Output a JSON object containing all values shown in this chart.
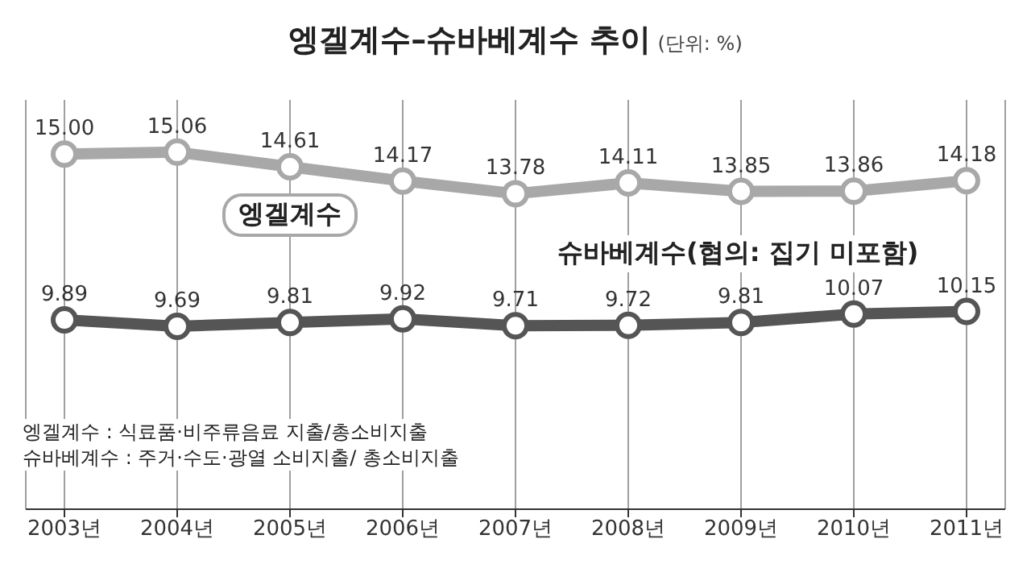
{
  "chart_data": {
    "type": "line",
    "title": "엥겔계수–슈바베계수 추이",
    "subtitle": "(단위: %)",
    "categories": [
      "2003년",
      "2004년",
      "2005년",
      "2006년",
      "2007년",
      "2008년",
      "2009년",
      "2010년",
      "2011년"
    ],
    "series": [
      {
        "name": "엥겔계수",
        "color": "#a8a8a8",
        "values": [
          15.0,
          15.06,
          14.61,
          14.17,
          13.78,
          14.11,
          13.85,
          13.86,
          14.18
        ],
        "value_labels": [
          "15.00",
          "15.06",
          "14.61",
          "14.17",
          "13.78",
          "14.11",
          "13.85",
          "13.86",
          "14.18"
        ]
      },
      {
        "name": "슈바베계수(협의: 집기 미포함)",
        "color": "#555555",
        "values": [
          9.89,
          9.69,
          9.81,
          9.92,
          9.71,
          9.72,
          9.81,
          10.07,
          10.15
        ],
        "value_labels": [
          "9.89",
          "9.69",
          "9.81",
          "9.92",
          "9.71",
          "9.72",
          "9.81",
          "10.07",
          "10.15"
        ]
      }
    ],
    "annotations": [
      "엥겔계수 : 식료품·비주류음료 지출/총소비지출",
      "슈바베계수 : 주거·수도·광열 소비지출/ 총소비지출"
    ],
    "grid": "x",
    "marker": "circle",
    "line_style": "solid",
    "legend": false
  }
}
